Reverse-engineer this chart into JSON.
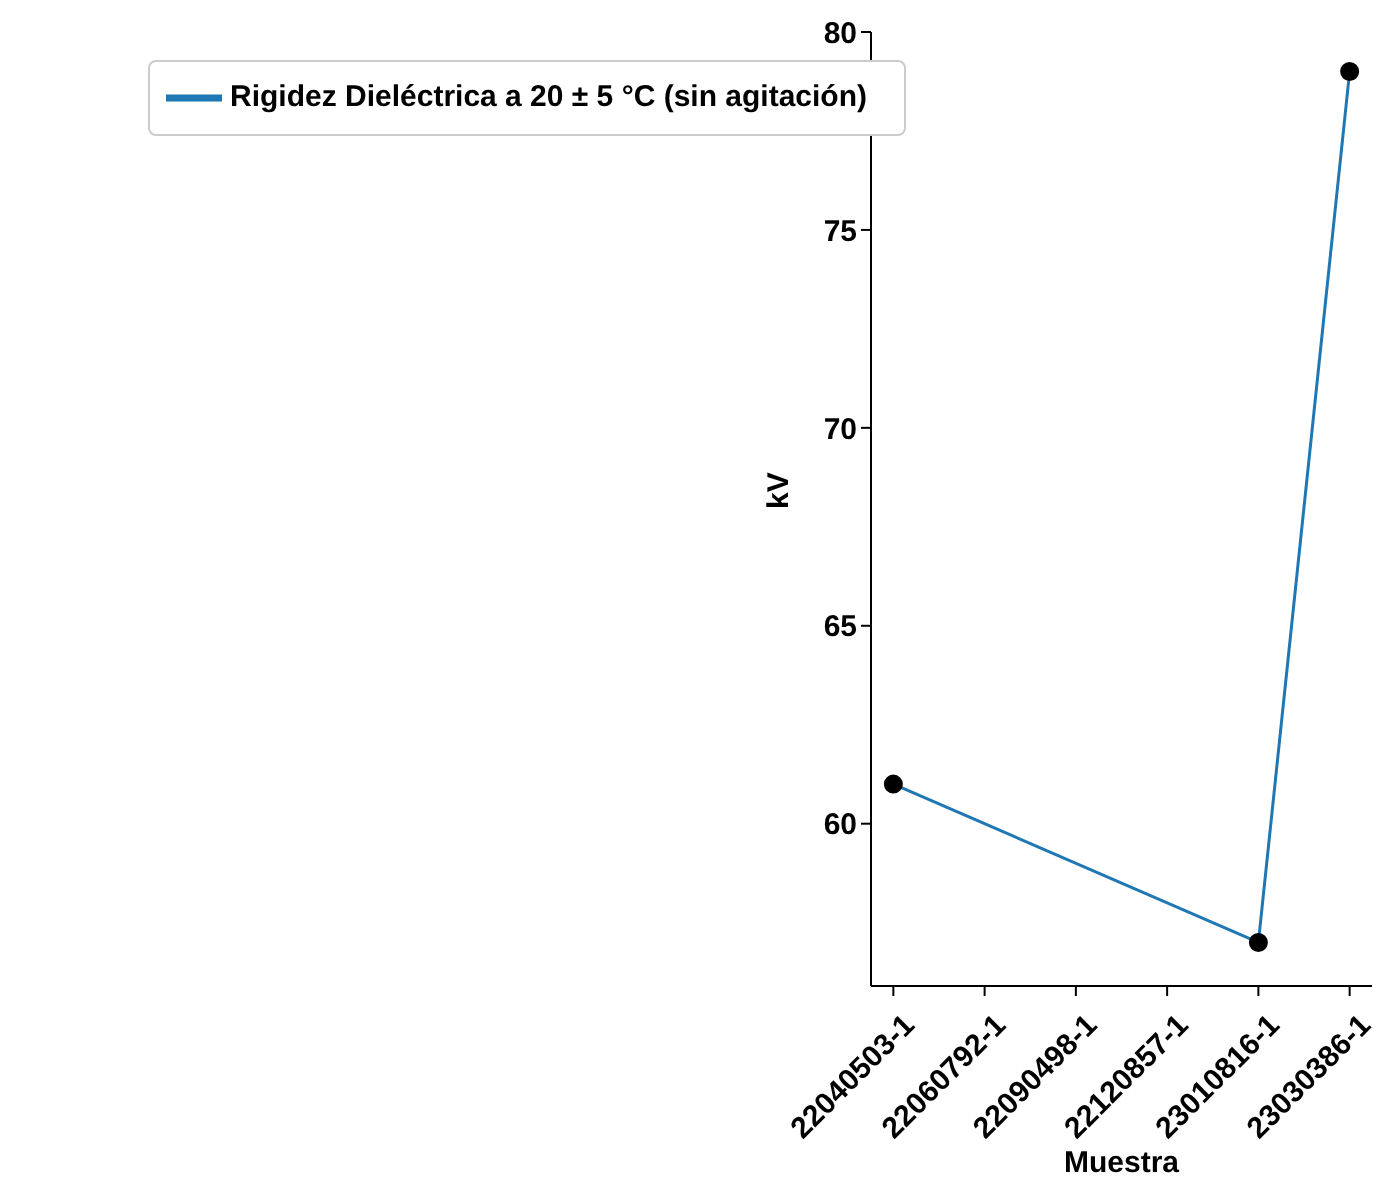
{
  "chart_data": {
    "type": "line",
    "xlabel": "Muestra",
    "ylabel": "kV",
    "categories": [
      "22040503-1",
      "22060792-1",
      "22090498-1",
      "22120857-1",
      "23010816-1",
      "23030386-1"
    ],
    "series": [
      {
        "name": "Rigidez Dieléctrica a 20 ± 5 °C (sin agitación)",
        "color": "#1f77b4",
        "values": [
          61,
          null,
          null,
          null,
          57,
          79
        ]
      }
    ],
    "ylim": [
      55.9,
      80
    ],
    "yticks": [
      60,
      65,
      70,
      75,
      80
    ],
    "grid": false,
    "legend": "top left",
    "marker": "circle",
    "line_style": "solid"
  }
}
